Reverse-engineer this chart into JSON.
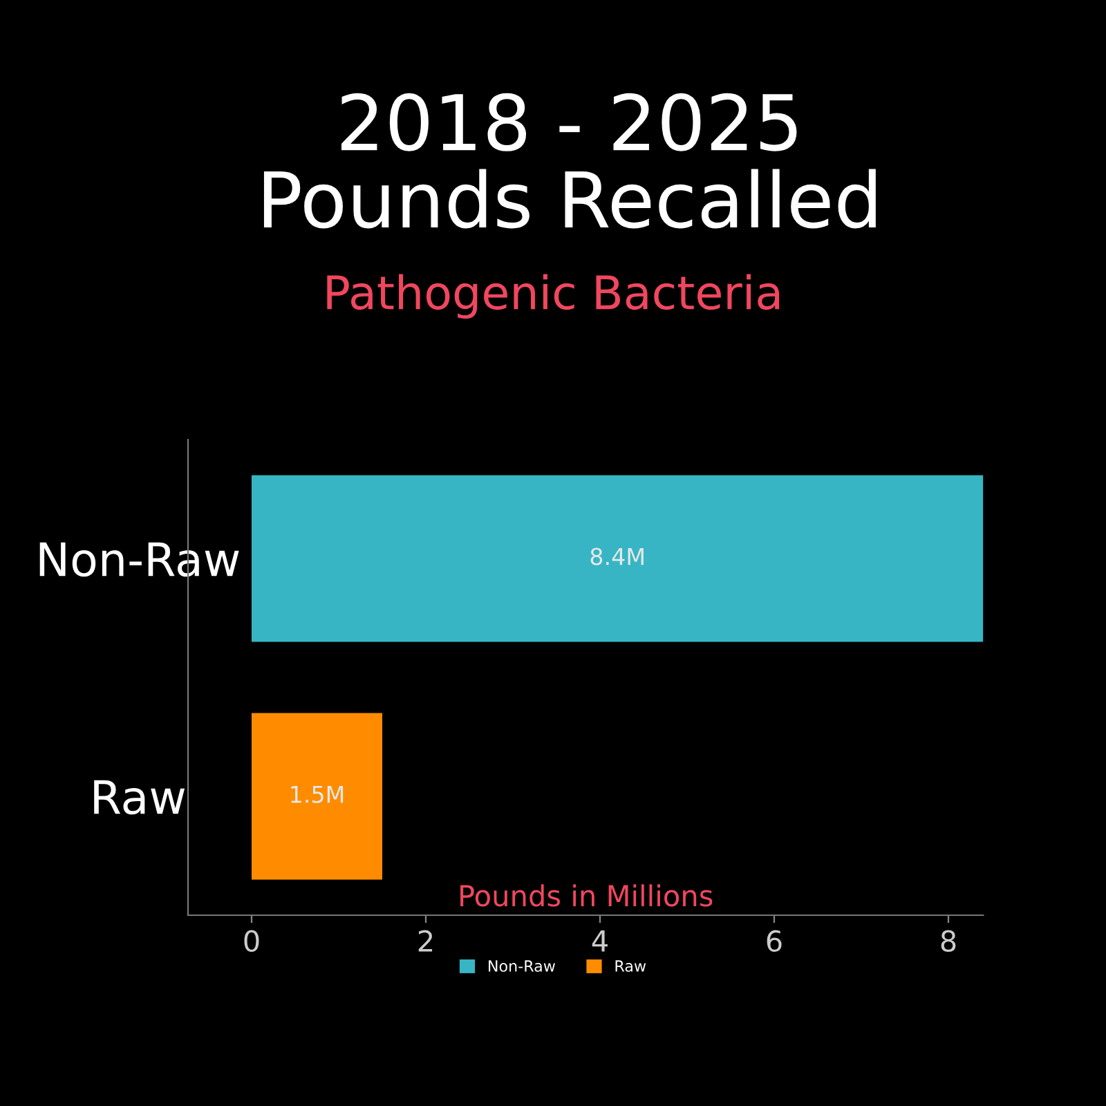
{
  "chart_data": {
    "type": "bar",
    "orientation": "horizontal",
    "title": "2018 - 2025\nPounds Recalled",
    "subtitle": "Pathogenic Bacteria",
    "xlabel": "Pounds in Millions",
    "categories": [
      "Non-Raw",
      "Raw"
    ],
    "series": [
      {
        "name": "Non-Raw",
        "color": "#37b5c4",
        "values": [
          8.4,
          null
        ],
        "value_labels": [
          "8.4M",
          null
        ]
      },
      {
        "name": "Raw",
        "color": "#ff8c00",
        "values": [
          null,
          1.5
        ],
        "value_labels": [
          null,
          "1.5M"
        ]
      }
    ],
    "xlim": [
      -0.73,
      8.4
    ],
    "xticks": [
      0,
      2,
      4,
      6,
      8
    ],
    "grid": false,
    "legend": "bottom"
  }
}
